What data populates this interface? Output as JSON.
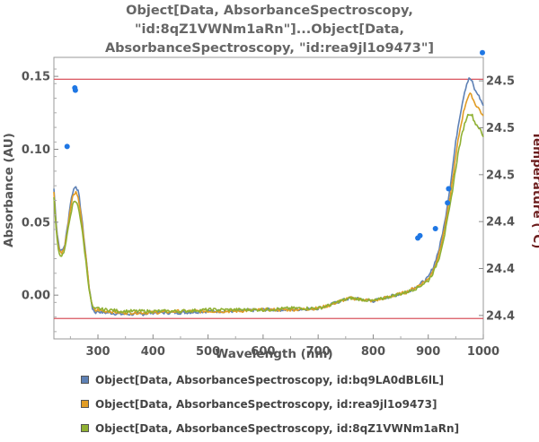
{
  "title_lines": [
    "Object[Data, AbsorbanceSpectroscopy,",
    "\"id:8qZ1VWNm1aRn\"]...Object[Data,",
    "AbsorbanceSpectroscopy, \"id:rea9jl1o9473\"]"
  ],
  "chart_data": {
    "type": "line",
    "xlabel": "Wavelength  (nm)",
    "ylabel": "Absorbance  (AU)",
    "y2label": "Temperature  (°C)",
    "xlim": [
      220,
      1000
    ],
    "ylim": [
      -0.03,
      0.163
    ],
    "xticks": [
      300,
      400,
      500,
      600,
      700,
      800,
      900,
      1000
    ],
    "yticks": [
      0.0,
      0.05,
      0.1,
      0.15
    ],
    "ytick_labels": [
      "0.00",
      "0.05",
      "0.10",
      "0.15"
    ],
    "y2lim": [
      24.39,
      24.51
    ],
    "y2ticks": [
      24.4,
      24.42,
      24.44,
      24.46,
      24.48,
      24.5
    ],
    "y2tick_labels": [
      "24.4",
      "24.4",
      "24.4",
      "24.5",
      "24.5",
      "24.5"
    ],
    "reference_lines_absorbance": [
      0.148,
      -0.016
    ],
    "colors": {
      "series1": "#5e81b5",
      "series2": "#e19c24",
      "series3": "#8fb032",
      "temperature": "#1f77e4",
      "reference": "#d9545f",
      "y2label": "#6b1c1c"
    },
    "series": [
      {
        "name": "Object[Data, AbsorbanceSpectroscopy, id:bq9LA0dBL6lL]",
        "x": [
          220,
          225,
          230,
          235,
          240,
          245,
          250,
          255,
          260,
          265,
          270,
          275,
          280,
          285,
          290,
          295,
          300,
          310,
          320,
          340,
          360,
          380,
          400,
          450,
          500,
          550,
          600,
          650,
          700,
          720,
          740,
          760,
          780,
          800,
          820,
          840,
          860,
          880,
          900,
          910,
          920,
          930,
          940,
          950,
          955,
          960,
          965,
          970,
          975,
          980,
          985,
          990,
          995,
          1000
        ],
        "y": [
          0.073,
          0.045,
          0.032,
          0.03,
          0.035,
          0.048,
          0.063,
          0.072,
          0.075,
          0.07,
          0.055,
          0.038,
          0.02,
          0.002,
          -0.009,
          -0.012,
          -0.011,
          -0.012,
          -0.012,
          -0.013,
          -0.013,
          -0.013,
          -0.012,
          -0.012,
          -0.011,
          -0.011,
          -0.01,
          -0.01,
          -0.009,
          -0.007,
          -0.004,
          -0.002,
          -0.003,
          -0.004,
          -0.002,
          0.0,
          0.002,
          0.006,
          0.012,
          0.02,
          0.032,
          0.05,
          0.075,
          0.105,
          0.118,
          0.128,
          0.138,
          0.145,
          0.149,
          0.146,
          0.14,
          0.138,
          0.134,
          0.13
        ]
      },
      {
        "name": "Object[Data, AbsorbanceSpectroscopy, id:rea9jl1o9473]",
        "x": [
          220,
          225,
          230,
          235,
          240,
          245,
          250,
          255,
          260,
          265,
          270,
          275,
          280,
          285,
          290,
          295,
          300,
          310,
          320,
          340,
          360,
          380,
          400,
          450,
          500,
          550,
          600,
          650,
          700,
          720,
          740,
          760,
          780,
          800,
          820,
          840,
          860,
          880,
          900,
          910,
          920,
          930,
          940,
          950,
          955,
          960,
          965,
          970,
          975,
          980,
          985,
          990,
          995,
          1000
        ],
        "y": [
          0.07,
          0.042,
          0.03,
          0.029,
          0.034,
          0.046,
          0.06,
          0.069,
          0.071,
          0.066,
          0.052,
          0.036,
          0.019,
          0.002,
          -0.008,
          -0.011,
          -0.01,
          -0.011,
          -0.011,
          -0.012,
          -0.012,
          -0.012,
          -0.012,
          -0.011,
          -0.011,
          -0.011,
          -0.01,
          -0.01,
          -0.009,
          -0.007,
          -0.004,
          -0.002,
          -0.003,
          -0.004,
          -0.002,
          0.0,
          0.002,
          0.006,
          0.011,
          0.018,
          0.029,
          0.046,
          0.068,
          0.095,
          0.108,
          0.118,
          0.127,
          0.134,
          0.138,
          0.136,
          0.131,
          0.129,
          0.126,
          0.122
        ]
      },
      {
        "name": "Object[Data, AbsorbanceSpectroscopy, id:8qZ1VWNm1aRn]",
        "x": [
          220,
          225,
          230,
          235,
          240,
          245,
          250,
          255,
          260,
          265,
          270,
          275,
          280,
          285,
          290,
          295,
          300,
          310,
          320,
          340,
          360,
          380,
          400,
          450,
          500,
          550,
          600,
          650,
          700,
          720,
          740,
          760,
          780,
          800,
          820,
          840,
          860,
          880,
          900,
          910,
          920,
          930,
          940,
          950,
          955,
          960,
          965,
          970,
          975,
          980,
          985,
          990,
          995,
          1000
        ],
        "y": [
          0.068,
          0.04,
          0.028,
          0.027,
          0.032,
          0.043,
          0.055,
          0.063,
          0.064,
          0.06,
          0.048,
          0.033,
          0.017,
          0.001,
          -0.008,
          -0.01,
          -0.009,
          -0.01,
          -0.01,
          -0.011,
          -0.011,
          -0.011,
          -0.011,
          -0.011,
          -0.01,
          -0.01,
          -0.01,
          -0.009,
          -0.009,
          -0.007,
          -0.004,
          -0.002,
          -0.003,
          -0.004,
          -0.002,
          0.0,
          0.002,
          0.005,
          0.01,
          0.016,
          0.026,
          0.042,
          0.062,
          0.087,
          0.099,
          0.108,
          0.116,
          0.122,
          0.125,
          0.123,
          0.118,
          0.116,
          0.113,
          0.108
        ]
      }
    ],
    "temperature_points": {
      "x": [
        244,
        258,
        259,
        881,
        885,
        913,
        935,
        937,
        1000
      ],
      "y": [
        24.472,
        24.497,
        24.496,
        24.433,
        24.434,
        24.437,
        24.448,
        24.454,
        24.512
      ]
    }
  },
  "legend": [
    {
      "label": "Object[Data, AbsorbanceSpectroscopy, id:bq9LA0dBL6lL]",
      "color": "#5e81b5"
    },
    {
      "label": "Object[Data, AbsorbanceSpectroscopy, id:rea9jl1o9473]",
      "color": "#e19c24"
    },
    {
      "label": "Object[Data, AbsorbanceSpectroscopy, id:8qZ1VWNm1aRn]",
      "color": "#8fb032"
    }
  ]
}
